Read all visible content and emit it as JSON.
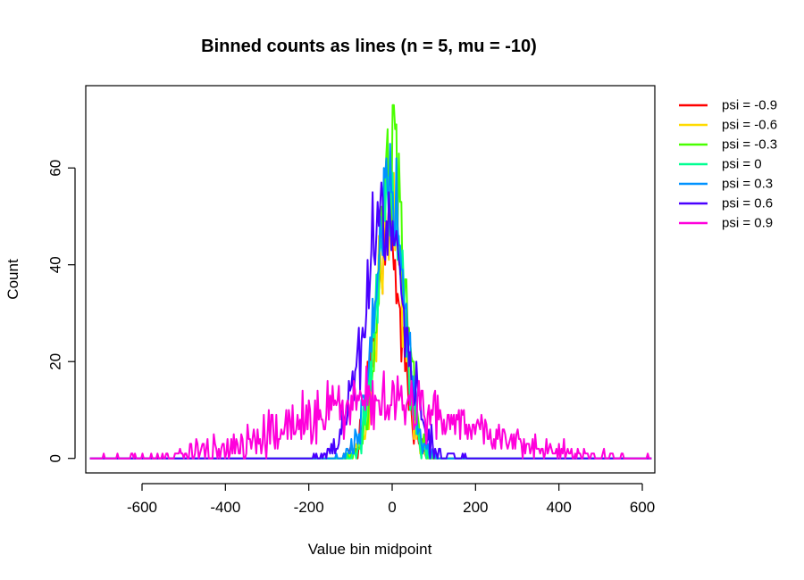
{
  "chart_data": {
    "type": "line",
    "title": "Binned counts as lines (n = 5, mu = -10)",
    "xlabel": "Value bin midpoint",
    "ylabel": "Count",
    "xlim": [
      -735,
      630
    ],
    "ylim": [
      -3,
      77
    ],
    "x_ticks": [
      -600,
      -400,
      -200,
      0,
      200,
      400,
      600
    ],
    "x_tick_labels": [
      "-600",
      "-400",
      "-200",
      "0",
      "200",
      "400",
      "600"
    ],
    "y_ticks": [
      0,
      20,
      40,
      60
    ],
    "y_tick_labels": [
      "0",
      "20",
      "40",
      "60"
    ],
    "x_range": [
      -725,
      622
    ],
    "bin_width": 3,
    "legend_position": "right-outside",
    "series": [
      {
        "name": "psi = -0.9",
        "color": "#FF0000",
        "center": -10,
        "sd": 32,
        "peak": 44,
        "support": [
          -130,
          110
        ]
      },
      {
        "name": "psi = -0.6",
        "color": "#FFDB00",
        "center": -5,
        "sd": 30,
        "peak": 55,
        "support": [
          -120,
          100
        ]
      },
      {
        "name": "psi = -0.3",
        "color": "#49FF00",
        "center": 0,
        "sd": 30,
        "peak": 62,
        "support": [
          -110,
          100
        ]
      },
      {
        "name": "psi = 0",
        "color": "#00FF92",
        "center": -5,
        "sd": 31,
        "peak": 58,
        "support": [
          -120,
          100
        ]
      },
      {
        "name": "psi = 0.3",
        "color": "#0092FF",
        "center": -5,
        "sd": 34,
        "peak": 55,
        "support": [
          -140,
          110
        ]
      },
      {
        "name": "psi = 0.6",
        "color": "#4900FF",
        "center": -20,
        "sd": 48,
        "peak": 50,
        "support": [
          -220,
          190
        ]
      },
      {
        "name": "psi = 0.9",
        "color": "#FF00DB",
        "center": -30,
        "sd": 200,
        "peak": 12,
        "support": [
          -725,
          622
        ]
      }
    ]
  }
}
